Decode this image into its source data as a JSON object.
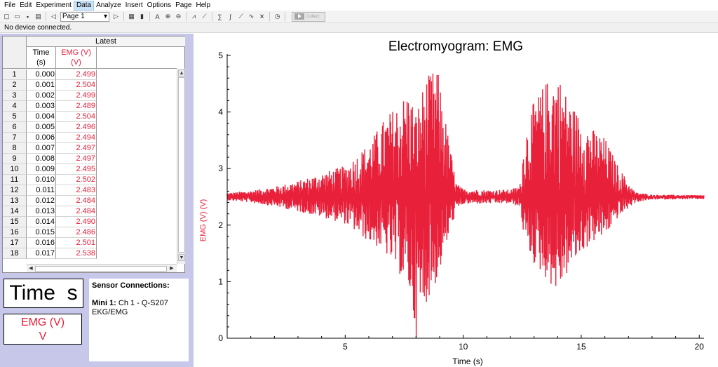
{
  "menubar": {
    "items": [
      "File",
      "Edit",
      "Experiment",
      "Data",
      "Analyze",
      "Insert",
      "Options",
      "Page",
      "Help"
    ],
    "active_item": "Data"
  },
  "toolbar": {
    "page_select": "Page 1",
    "collect_label": "Collect"
  },
  "status": {
    "text": "No device connected."
  },
  "table": {
    "group_header": "Latest",
    "time_header": [
      "Time",
      "(s)"
    ],
    "emg_header": [
      "EMG (V)",
      "(V)"
    ],
    "rows": [
      {
        "n": "1",
        "t": "0.000",
        "v": "2.499"
      },
      {
        "n": "2",
        "t": "0.001",
        "v": "2.504"
      },
      {
        "n": "3",
        "t": "0.002",
        "v": "2.499"
      },
      {
        "n": "4",
        "t": "0.003",
        "v": "2.489"
      },
      {
        "n": "5",
        "t": "0.004",
        "v": "2.504"
      },
      {
        "n": "6",
        "t": "0.005",
        "v": "2.496"
      },
      {
        "n": "7",
        "t": "0.006",
        "v": "2.494"
      },
      {
        "n": "8",
        "t": "0.007",
        "v": "2.497"
      },
      {
        "n": "9",
        "t": "0.008",
        "v": "2.497"
      },
      {
        "n": "10",
        "t": "0.009",
        "v": "2.495"
      },
      {
        "n": "11",
        "t": "0.010",
        "v": "2.502"
      },
      {
        "n": "12",
        "t": "0.011",
        "v": "2.483"
      },
      {
        "n": "13",
        "t": "0.012",
        "v": "2.484"
      },
      {
        "n": "14",
        "t": "0.013",
        "v": "2.484"
      },
      {
        "n": "15",
        "t": "0.014",
        "v": "2.490"
      },
      {
        "n": "16",
        "t": "0.015",
        "v": "2.486"
      },
      {
        "n": "17",
        "t": "0.016",
        "v": "2.501"
      },
      {
        "n": "18",
        "t": "0.017",
        "v": "2.538"
      }
    ]
  },
  "meters": {
    "time_label": "Time  s",
    "emg_name": "EMG (V)",
    "emg_unit": "V"
  },
  "sensor": {
    "title": "Sensor Connections:",
    "mini_label": "Mini 1:",
    "mini_text": " Ch 1 - Q-S207",
    "device": "EKG/EMG"
  },
  "colors": {
    "signal": "#e8203a",
    "workspace": "#c7c7ea"
  },
  "chart_data": {
    "type": "line",
    "title": "Electromyogram: EMG",
    "xlabel": "Time (s)",
    "ylabel": "EMG (V) (V)",
    "xlim": [
      0,
      20.2
    ],
    "ylim": [
      0,
      5
    ],
    "x_ticks": [
      5,
      10,
      15,
      20
    ],
    "y_ticks": [
      0,
      1,
      2,
      3,
      4,
      5
    ],
    "grid": false,
    "series": [
      {
        "baseline": 2.5,
        "envelope": [
          [
            0.0,
            2.44,
            2.57
          ],
          [
            1.0,
            2.4,
            2.61
          ],
          [
            2.0,
            2.33,
            2.68
          ],
          [
            3.0,
            2.24,
            2.78
          ],
          [
            4.0,
            2.14,
            2.92
          ],
          [
            5.0,
            2.02,
            3.05
          ],
          [
            6.0,
            1.7,
            3.45
          ],
          [
            6.6,
            1.55,
            3.85
          ],
          [
            7.2,
            1.2,
            4.15
          ],
          [
            7.7,
            0.85,
            4.4
          ],
          [
            8.0,
            0.0,
            4.0
          ],
          [
            8.4,
            0.6,
            4.6
          ],
          [
            8.9,
            1.0,
            4.8
          ],
          [
            9.3,
            1.65,
            3.75
          ],
          [
            9.7,
            2.25,
            2.75
          ],
          [
            10.0,
            2.37,
            2.64
          ],
          [
            11.0,
            2.38,
            2.62
          ],
          [
            12.0,
            2.38,
            2.63
          ],
          [
            12.4,
            2.32,
            2.7
          ],
          [
            12.6,
            1.7,
            3.6
          ],
          [
            13.0,
            1.3,
            4.2
          ],
          [
            13.6,
            1.0,
            4.6
          ],
          [
            14.0,
            0.8,
            4.7
          ],
          [
            14.5,
            1.2,
            4.2
          ],
          [
            15.0,
            1.5,
            3.9
          ],
          [
            15.5,
            1.7,
            3.7
          ],
          [
            16.0,
            1.8,
            3.55
          ],
          [
            16.5,
            2.1,
            3.1
          ],
          [
            17.0,
            2.3,
            2.75
          ],
          [
            17.3,
            2.4,
            2.58
          ],
          [
            18.0,
            2.45,
            2.54
          ],
          [
            20.2,
            2.46,
            2.53
          ]
        ]
      }
    ]
  }
}
